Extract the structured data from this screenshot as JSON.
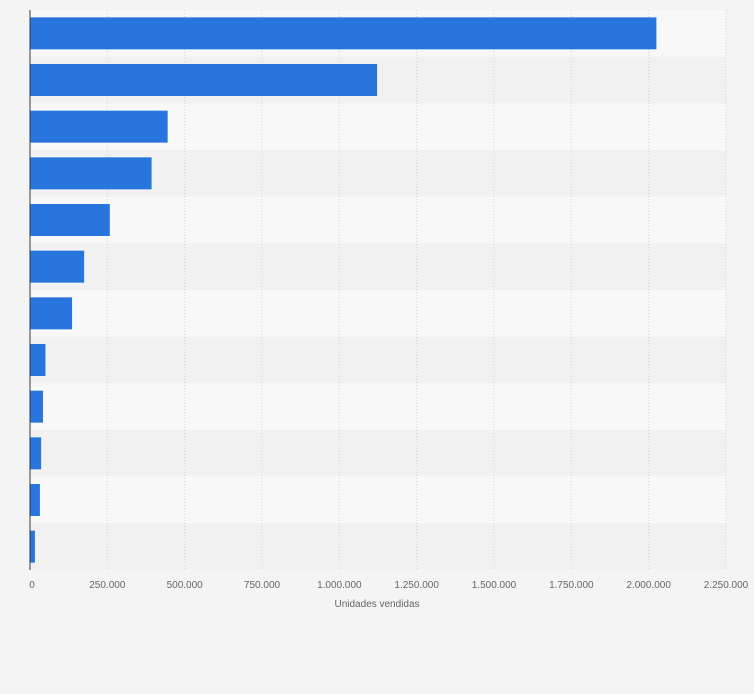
{
  "colors": {
    "background": "#f4f4f4",
    "band_light": "#f8f8f9",
    "band_dark": "#f1f1f2",
    "bar": "#2876dd",
    "grid": "#d6d6d6",
    "axis": "#3a3a3a",
    "tick_text": "#666666"
  },
  "chart_data": {
    "type": "bar",
    "orientation": "horizontal",
    "categories": [
      "",
      "",
      "",
      "",
      "",
      "",
      "",
      "",
      "",
      "",
      "",
      ""
    ],
    "values": [
      2025000,
      1122000,
      445000,
      393000,
      258000,
      175000,
      136000,
      50000,
      42000,
      36000,
      32000,
      16000
    ],
    "xlim": [
      0,
      2250000
    ],
    "xticks": [
      0,
      250000,
      500000,
      750000,
      1000000,
      1250000,
      1500000,
      1750000,
      2000000,
      2250000
    ],
    "xtick_labels": [
      "0",
      "250.000",
      "500.000",
      "750.000",
      "1.000.000",
      "1.250.000",
      "1.500.000",
      "1.750.000",
      "2.000.000",
      "2.250.000"
    ],
    "xlabel": "Unidades vendidas",
    "ylabel": "",
    "title": "",
    "grid": true,
    "legend": "none"
  }
}
